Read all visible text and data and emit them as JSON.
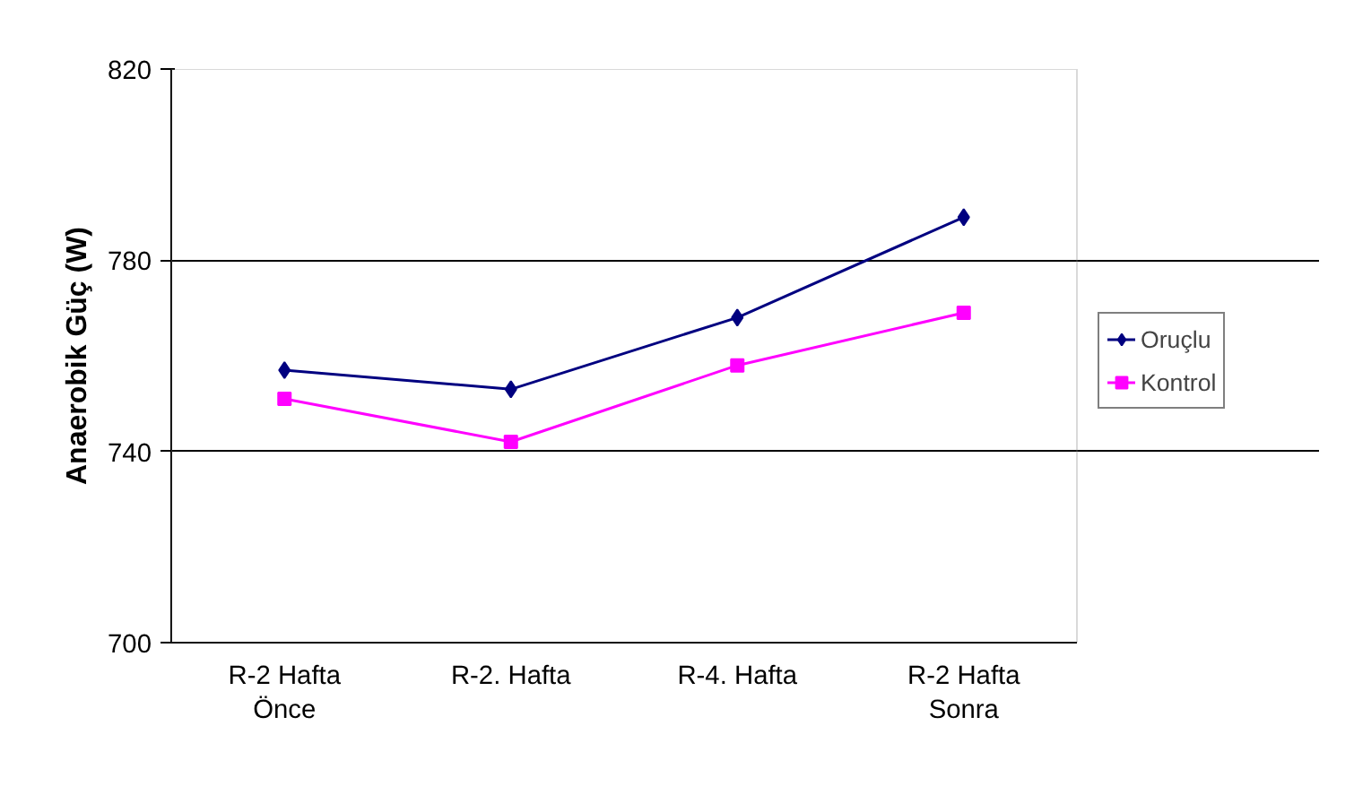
{
  "chart_data": {
    "type": "line",
    "ylabel": "Anaerobik Güç (W)",
    "categories": [
      "R-2 Hafta Önce",
      "R-2. Hafta",
      "R-4. Hafta",
      "R-2 Hafta Sonra"
    ],
    "series": [
      {
        "name": "Oruçlu",
        "color": "#000080",
        "marker": "diamond",
        "values": [
          757,
          753,
          768,
          789
        ]
      },
      {
        "name": "Kontrol",
        "color": "#ff00ff",
        "marker": "square",
        "values": [
          751,
          742,
          758,
          769
        ]
      }
    ],
    "ylim": [
      700,
      820
    ],
    "yticks": [
      700,
      740,
      780,
      820
    ],
    "grid": "y",
    "legend": "right",
    "line_style": "solid"
  }
}
